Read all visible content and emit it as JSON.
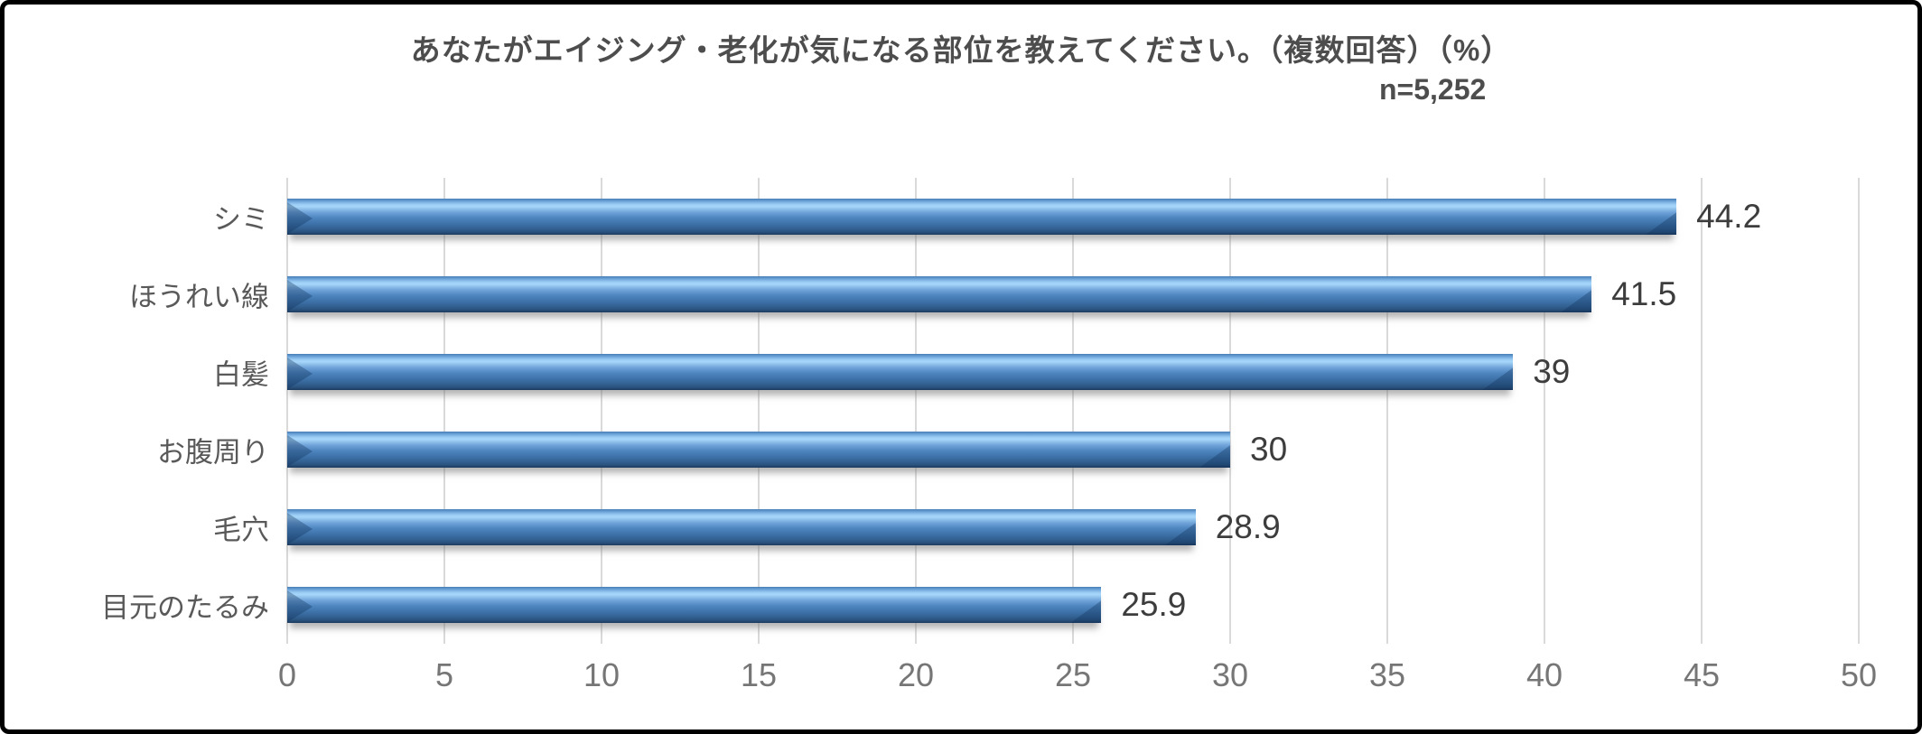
{
  "chart_data": {
    "type": "bar",
    "orientation": "horizontal",
    "title": "あなたがエイジング・老化が気になる部位を教えてください。（複数回答）（%）",
    "n_label": "n=5,252",
    "categories": [
      "シミ",
      "ほうれい線",
      "白髪",
      "お腹周り",
      "毛穴",
      "目元のたるみ"
    ],
    "values": [
      44.2,
      41.5,
      39,
      30,
      28.9,
      25.9
    ],
    "value_labels": [
      "44.2",
      "41.5",
      "39",
      "30",
      "28.9",
      "25.9"
    ],
    "xlim": [
      0,
      50
    ],
    "xticks": [
      0,
      5,
      10,
      15,
      20,
      25,
      30,
      35,
      40,
      45,
      50
    ],
    "grid": true,
    "legend": "none",
    "colors": {
      "bar_top": "#467db5",
      "bar_highlight": "#a6d6f9",
      "bar_mid": "#4e86bf",
      "bar_dark": "#1c3a5e",
      "cap_shade": "rgba(16,48,88,0.34)",
      "gridline": "#d9d9d9",
      "title_text": "#4d4d4d",
      "category_text": "#595959",
      "value_text": "#3d3d3d",
      "axis_text": "#767676",
      "frame_border": "#000000",
      "background": "#ffffff"
    }
  }
}
